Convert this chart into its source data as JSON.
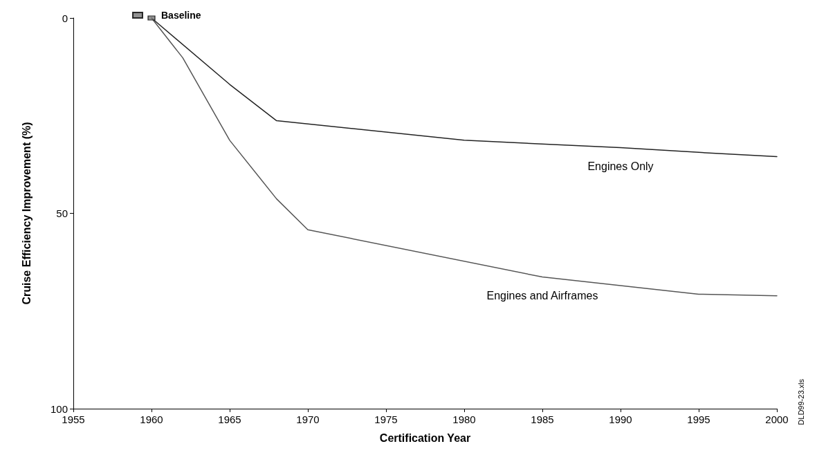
{
  "chart_data": {
    "type": "line",
    "xlabel": "Certification Year",
    "ylabel": "Cruise Efficiency Improvement (%)",
    "xlim": [
      1955,
      2000
    ],
    "xticks": [
      1955,
      1960,
      1965,
      1970,
      1975,
      1980,
      1985,
      1990,
      1995,
      2000
    ],
    "ylim": [
      100,
      0
    ],
    "yticks": [
      0,
      50,
      100
    ],
    "grid": false,
    "legend": "top left",
    "marker": "none",
    "line_style": "solid",
    "series": [
      {
        "name": "Baseline",
        "type": "scatter",
        "marker": "square",
        "color": "#777777",
        "x": [
          1960
        ],
        "values": [
          0
        ]
      },
      {
        "name": "Engines Only",
        "color": "#222222",
        "x": [
          1960,
          1965,
          1968,
          1980,
          1990,
          1995,
          2000
        ],
        "values": [
          0,
          17,
          26.3,
          31.3,
          33.2,
          34.4,
          35.5
        ]
      },
      {
        "name": "Engines and Airframes",
        "color": "#555555",
        "x": [
          1960,
          1962,
          1965,
          1968,
          1970,
          1985,
          1995,
          2000
        ],
        "values": [
          0,
          10.2,
          31.3,
          46.3,
          54.2,
          66.3,
          70.7,
          71.1
        ]
      }
    ],
    "annotations": [
      "DLD99-23.xls"
    ]
  }
}
